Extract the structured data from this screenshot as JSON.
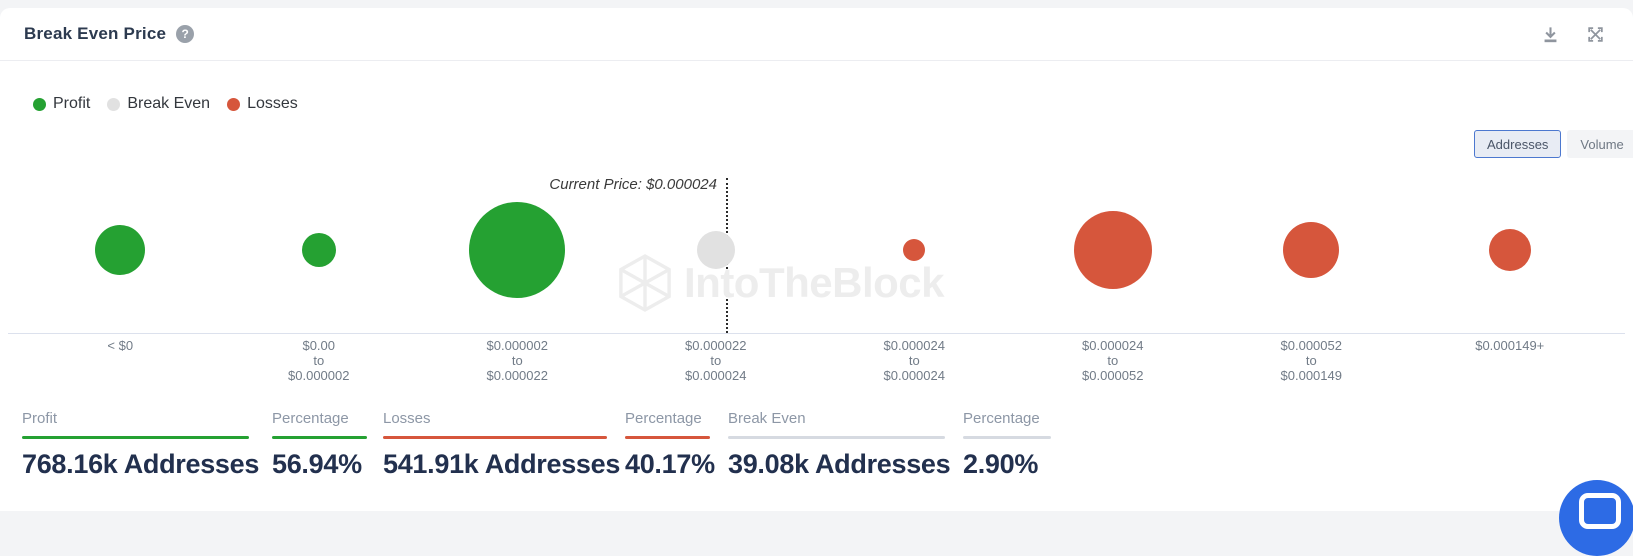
{
  "header": {
    "title": "Break Even Price",
    "help_icon": "question-mark"
  },
  "toolbar": {
    "download_icon": "download",
    "expand_icon": "fullscreen-expand"
  },
  "legend": [
    {
      "label": "Profit",
      "color": "#25a132"
    },
    {
      "label": "Break Even",
      "color": "#e1e1e1"
    },
    {
      "label": "Losses",
      "color": "#d6563c"
    }
  ],
  "toggle": {
    "options": [
      {
        "label": "Addresses",
        "selected": true
      },
      {
        "label": "Volume",
        "selected": false
      }
    ]
  },
  "chart_data": {
    "type": "bubble",
    "title": "Break Even Price",
    "current_price_annotation": "Current Price: $0.000024",
    "current_price_value": "$0.000024",
    "size_metric": "Addresses",
    "legend_position": "top-left",
    "colors": {
      "profit": "#25a132",
      "break_even": "#e1e1e1",
      "losses": "#d6563c"
    },
    "categories": [
      [
        "< $0"
      ],
      [
        "$0.00",
        "to",
        "$0.000002"
      ],
      [
        "$0.000002",
        "to",
        "$0.000022"
      ],
      [
        "$0.000022",
        "to",
        "$0.000024"
      ],
      [
        "$0.000024",
        "to",
        "$0.000024"
      ],
      [
        "$0.000024",
        "to",
        "$0.000052"
      ],
      [
        "$0.000052",
        "to",
        "$0.000149"
      ],
      [
        "$0.000149+"
      ]
    ],
    "bubbles": [
      {
        "range": "< $0",
        "status": "profit",
        "radius_px": 25
      },
      {
        "range": "$0.00 to $0.000002",
        "status": "profit",
        "radius_px": 17
      },
      {
        "range": "$0.000002 to $0.000022",
        "status": "profit",
        "radius_px": 48
      },
      {
        "range": "$0.000022 to $0.000024",
        "status": "break_even",
        "radius_px": 19
      },
      {
        "range": "$0.000024 to $0.000024",
        "status": "losses",
        "radius_px": 11
      },
      {
        "range": "$0.000024 to $0.000052",
        "status": "losses",
        "radius_px": 39
      },
      {
        "range": "$0.000052 to $0.000149",
        "status": "losses",
        "radius_px": 28
      },
      {
        "range": "$0.000149+",
        "status": "losses",
        "radius_px": 21
      }
    ]
  },
  "stats": [
    {
      "label": "Profit",
      "value": "768.16k Addresses",
      "accent": "#25a132"
    },
    {
      "label": "Percentage",
      "value": "56.94%",
      "accent": "#25a132"
    },
    {
      "label": "Losses",
      "value": "541.91k Addresses",
      "accent": "#d6563c"
    },
    {
      "label": "Percentage",
      "value": "40.17%",
      "accent": "#d6563c"
    },
    {
      "label": "Break Even",
      "value": "39.08k Addresses",
      "accent": "#d6dae1"
    },
    {
      "label": "Percentage",
      "value": "2.90%",
      "accent": "#d6dae1"
    }
  ],
  "watermark": {
    "text": "IntoTheBlock"
  }
}
